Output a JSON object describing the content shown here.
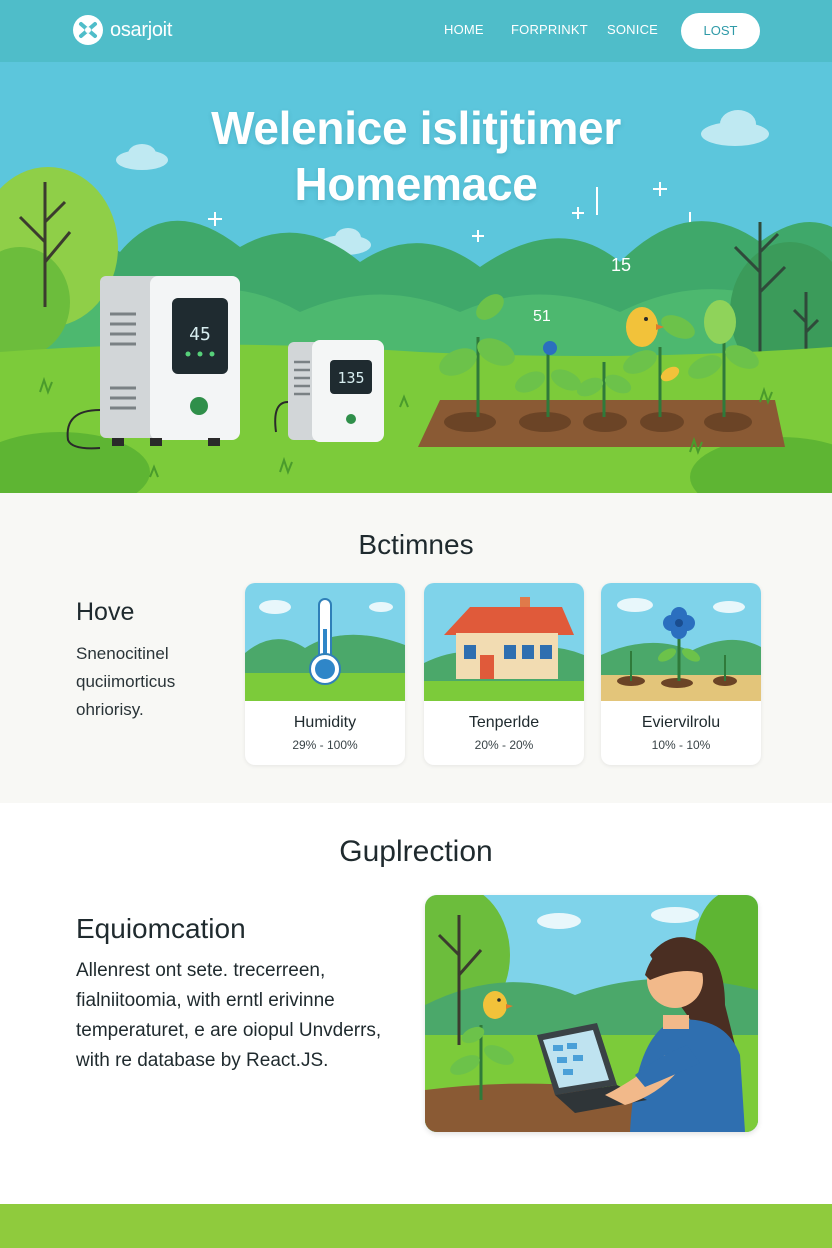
{
  "nav": {
    "brand": "osarjoit",
    "links": [
      "HOME",
      "FORPRINKT",
      "SONICE"
    ],
    "login_label": "LOST"
  },
  "hero": {
    "title_line1": "Welenice islitjtimer",
    "title_line2": "Homemace",
    "device_large_display": "45",
    "device_small_display": "135",
    "floating_number_1": "15",
    "floating_number_2": "51"
  },
  "features": {
    "heading": "Bctimnes",
    "subtitle": "Hove",
    "text": "Snenocitinel quciimorticus ohriorisy.",
    "cards": [
      {
        "title": "Humidity",
        "range": "29% - 100%",
        "icon": "thermometer-icon"
      },
      {
        "title": "Tenperlde",
        "range": "20% - 20%",
        "icon": "house-icon"
      },
      {
        "title": "Eviervilrolu",
        "range": "10% - 10%",
        "icon": "flower-icon"
      }
    ]
  },
  "application": {
    "heading": "Guplrection",
    "subtitle": "Equiomcation",
    "text": "Allenrest ont sete. trecerreen, fialniitoomia, with erntl erivinne temperaturet, e are oiopul Unvderrs, with re database by React.JS."
  },
  "colors": {
    "nav": "#4fbdc9",
    "sky": "#5cc6dc",
    "grass": "#7ccb3a",
    "footer": "#8fcb3d"
  }
}
